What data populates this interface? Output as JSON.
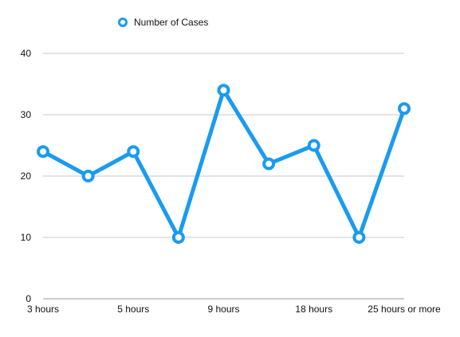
{
  "chart_data": {
    "type": "line",
    "title": "",
    "xlabel": "",
    "ylabel": "",
    "categories": [
      "3 hours",
      "",
      "5 hours",
      "",
      "9 hours",
      "",
      "18 hours",
      "",
      "25 hours or more"
    ],
    "series": [
      {
        "name": "Number of Cases",
        "values": [
          24,
          20,
          24,
          10,
          34,
          22,
          25,
          10,
          31
        ],
        "color": "#1a9bf0"
      }
    ],
    "ylim": [
      0,
      40
    ],
    "yticks": [
      0,
      10,
      20,
      30,
      40
    ],
    "grid": true,
    "legend": "top-left",
    "marker": "hollow-circle"
  }
}
